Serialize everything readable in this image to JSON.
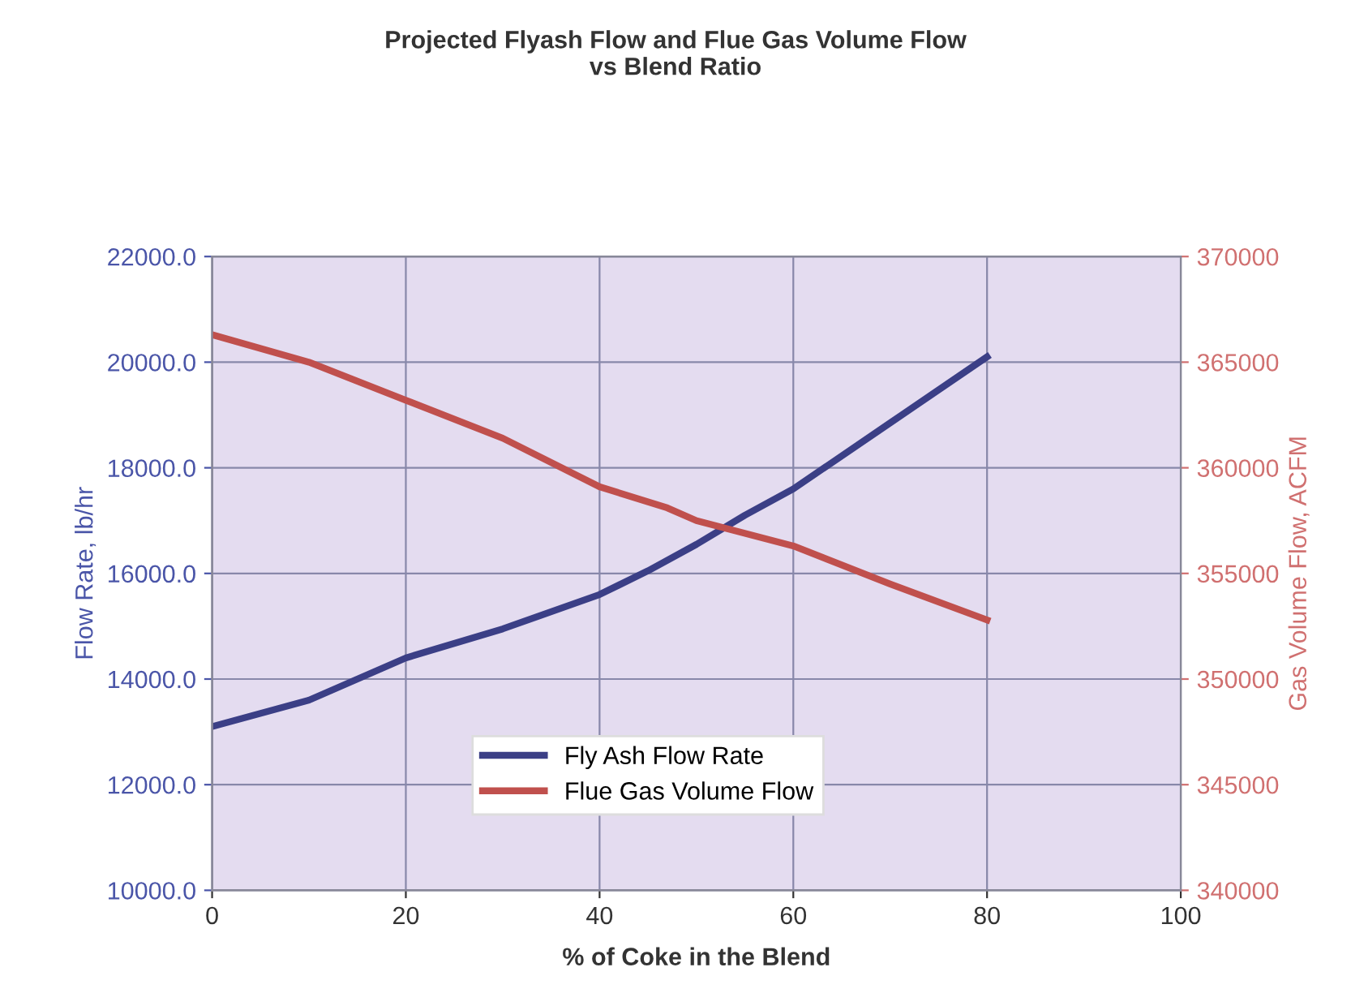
{
  "chart_data": {
    "type": "line",
    "title": "Projected Flyash Flow and Flue Gas Volume Flow\nvs Blend Ratio",
    "xlabel": "% of Coke in the Blend",
    "ylabel": "Flow Rate, lb/hr",
    "y2label": "Gas Volume Flow, ACFM",
    "xlim": [
      0,
      100
    ],
    "xticks": [
      0,
      20,
      40,
      60,
      80,
      100
    ],
    "ylim": [
      10000,
      22000
    ],
    "yticks": [
      {
        "value": 10000,
        "label": "10000.0"
      },
      {
        "value": 12000,
        "label": "12000.0"
      },
      {
        "value": 14000,
        "label": "14000.0"
      },
      {
        "value": 16000,
        "label": "16000.0"
      },
      {
        "value": 18000,
        "label": "18000.0"
      },
      {
        "value": 20000,
        "label": "20000.0"
      },
      {
        "value": 22000,
        "label": "22000.0"
      }
    ],
    "y2lim": [
      340000,
      370000
    ],
    "y2ticks": [
      340000,
      345000,
      350000,
      355000,
      360000,
      365000,
      370000
    ],
    "grid": true,
    "legend": "bottom",
    "marker": "none",
    "line_style": "solid",
    "series": [
      {
        "name": "Fly Ash Flow Rate",
        "color": "#3b3f86",
        "x": [
          0,
          10,
          20,
          30,
          40,
          45,
          50,
          55,
          60,
          70,
          80
        ],
        "values": [
          13100,
          13600,
          14400,
          14950,
          15600,
          16050,
          16550,
          17100,
          17600,
          18850,
          20100
        ]
      },
      {
        "name": "Flue Gas Volume Flow",
        "color": "#c0504d",
        "axis": "y2",
        "x": [
          0,
          10,
          20,
          30,
          40,
          47,
          50,
          60,
          70,
          80
        ],
        "values": [
          366300,
          365000,
          363200,
          361400,
          359100,
          358100,
          357500,
          356300,
          354500,
          352800
        ]
      }
    ]
  }
}
